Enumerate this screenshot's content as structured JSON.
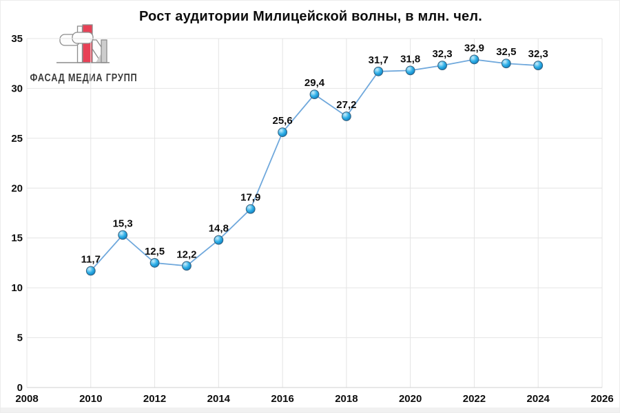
{
  "title": "Рост аудитории Милицейской волны, в млн. чел.",
  "logo": {
    "text": "ФАСАД МЕДИА ГРУПП",
    "colors": {
      "red": "#e84156",
      "outline": "#8c8c8c",
      "gray_fill": "#cdcdcd",
      "white_fill": "#fdfdfd",
      "text": "#3d3d3d"
    }
  },
  "chart_data": {
    "type": "line",
    "title": "Рост аудитории Милицейской волны, в млн. чел.",
    "x": [
      2010,
      2011,
      2012,
      2013,
      2014,
      2015,
      2016,
      2017,
      2018,
      2019,
      2020,
      2021,
      2022,
      2023,
      2024
    ],
    "values": [
      11.7,
      15.3,
      12.5,
      12.2,
      14.8,
      17.9,
      25.6,
      29.4,
      27.2,
      31.7,
      31.8,
      32.3,
      32.9,
      32.5,
      32.3
    ],
    "point_labels": [
      "11,7",
      "15,3",
      "12,5",
      "12,2",
      "14,8",
      "17,9",
      "25,6",
      "29,4",
      "27,2",
      "31,7",
      "31,8",
      "32,3",
      "32,9",
      "32,5",
      "32,3"
    ],
    "xlabel": "",
    "ylabel": "",
    "xlim": [
      2008,
      2026
    ],
    "ylim": [
      0,
      35
    ],
    "x_ticks": [
      2008,
      2010,
      2012,
      2014,
      2016,
      2018,
      2020,
      2022,
      2024,
      2026
    ],
    "y_ticks": [
      0,
      5,
      10,
      15,
      20,
      25,
      30,
      35
    ],
    "grid": true,
    "legend": false,
    "colors": {
      "line": "#6fa8dc",
      "marker_gradient": [
        "#cdeefb",
        "#2fb0e8",
        "#0e7dbd"
      ],
      "marker_edge": "#355f7d",
      "grid": "#e4e4e4",
      "axis": "#cfcfcf",
      "text": "#0d0d0d"
    }
  }
}
